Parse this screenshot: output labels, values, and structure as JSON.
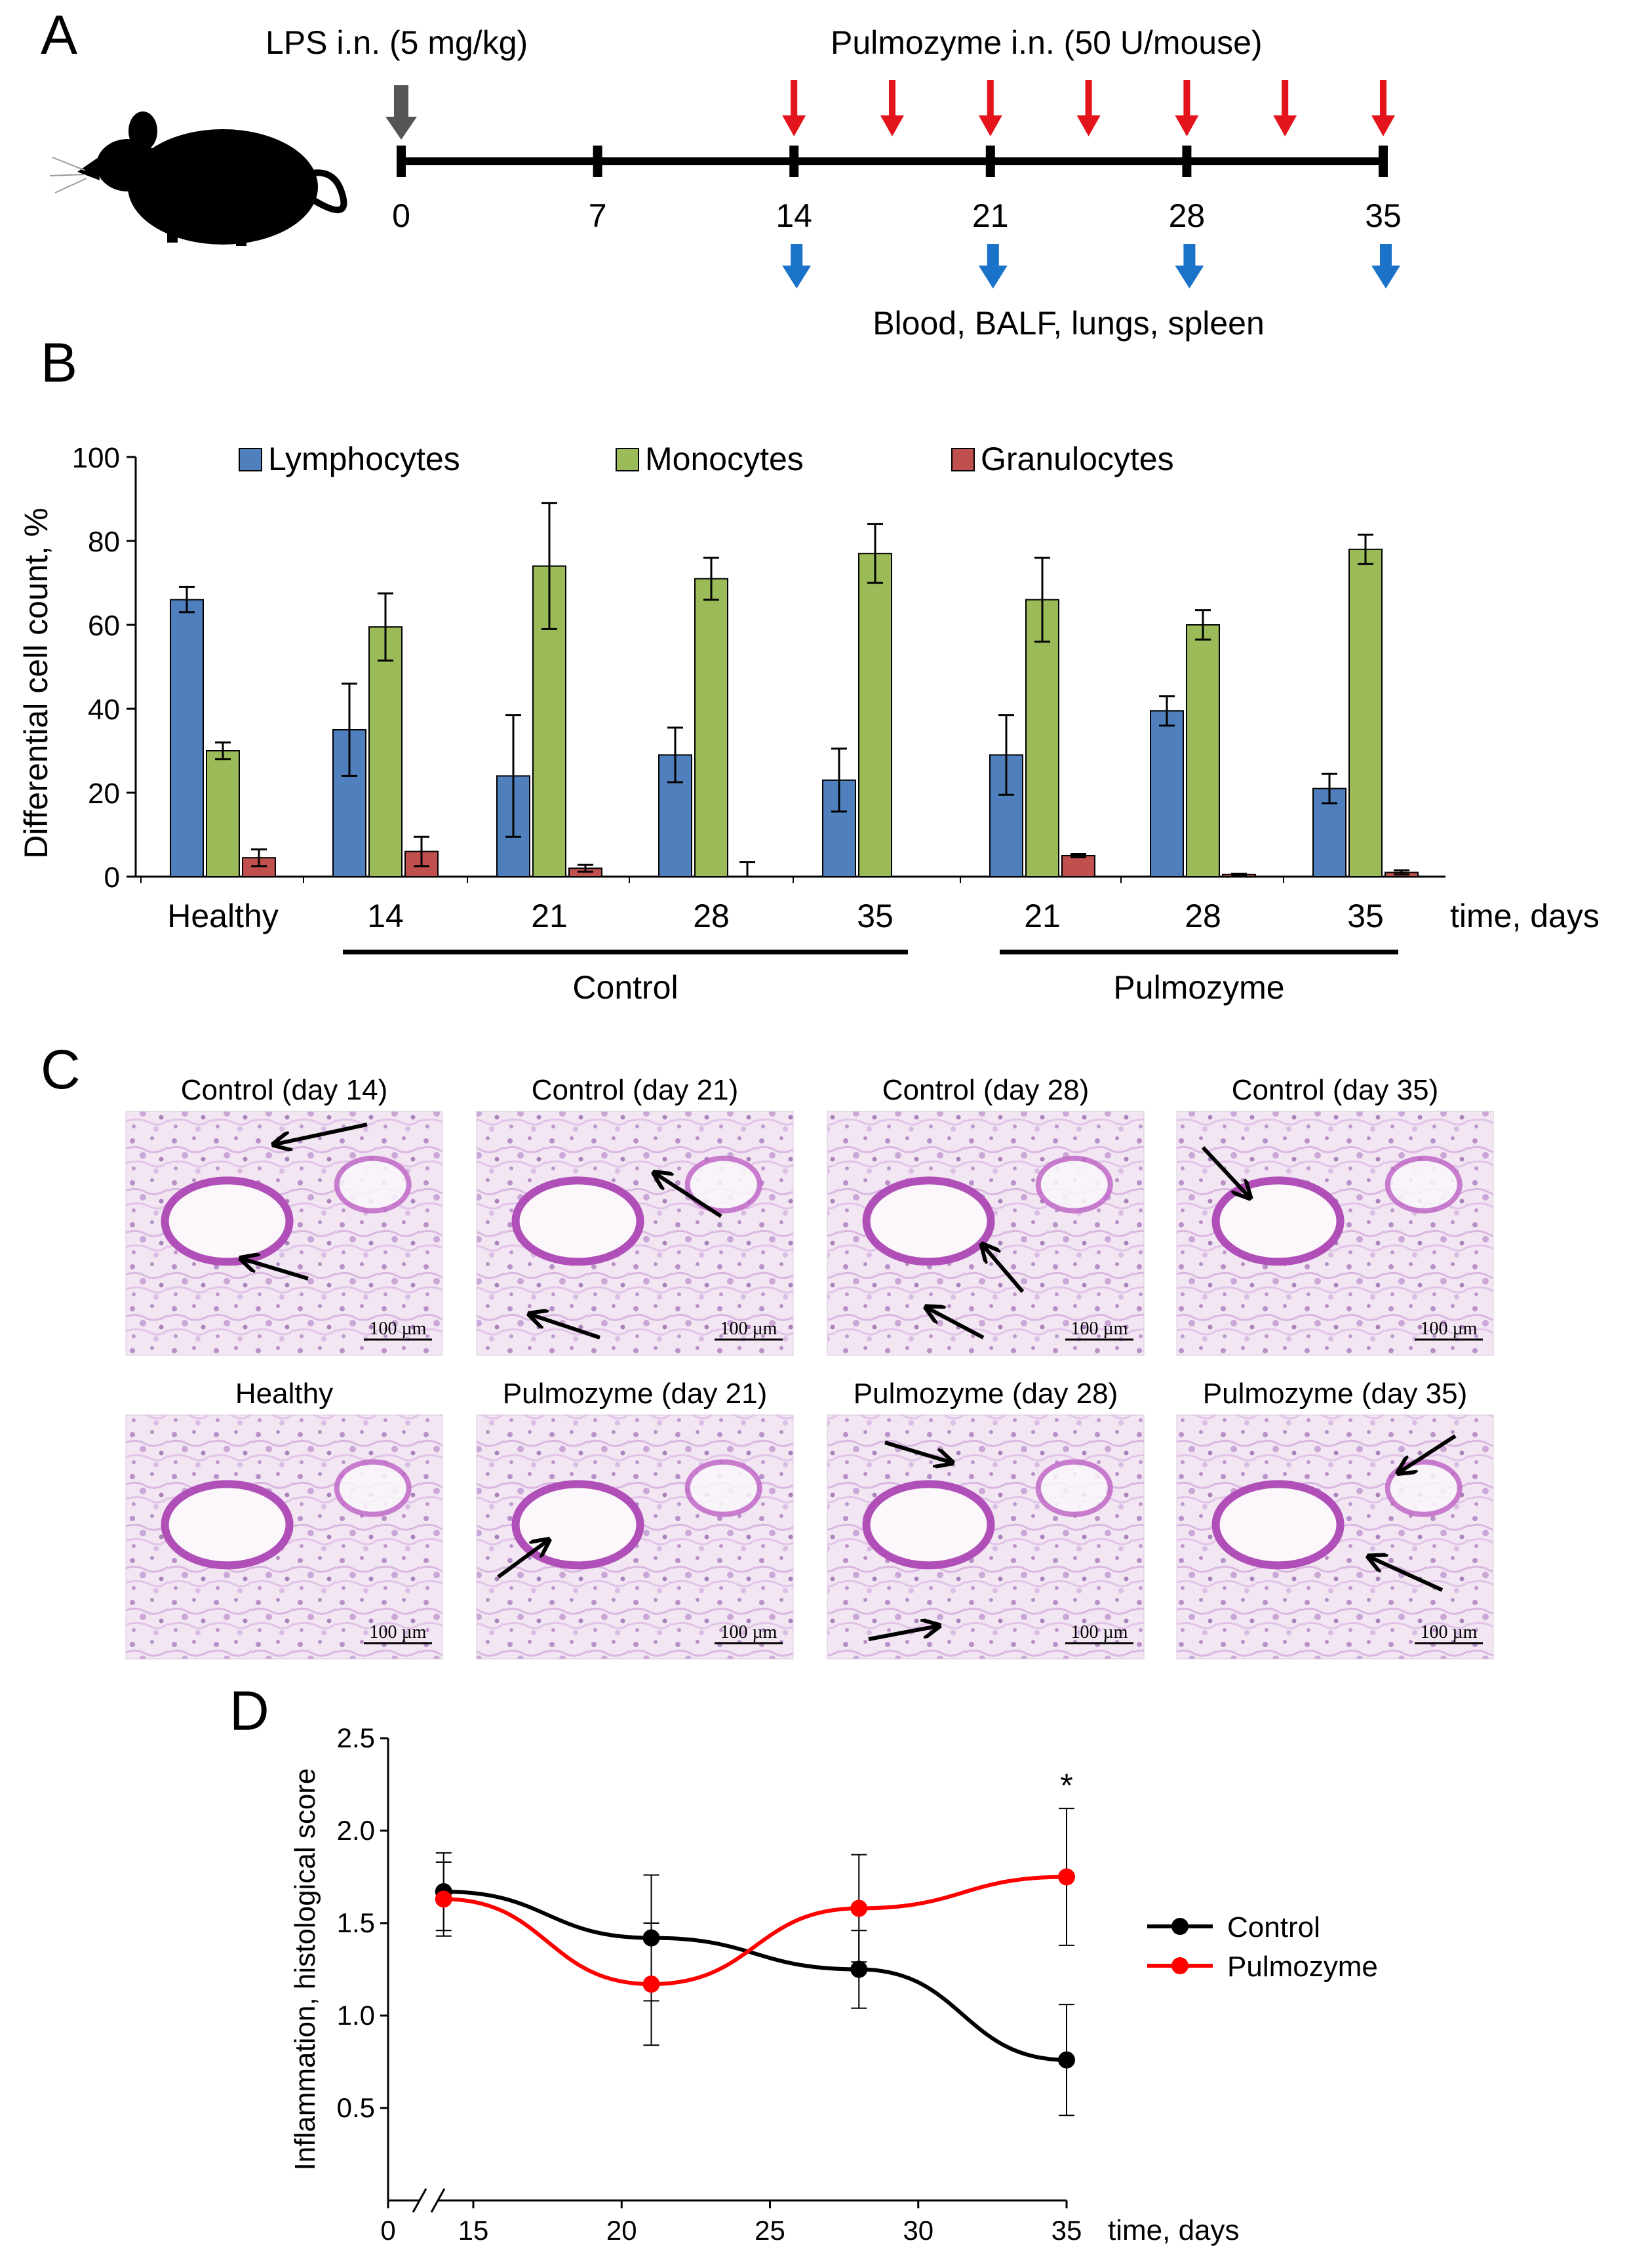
{
  "panels": {
    "a": "A",
    "b": "B",
    "c": "C",
    "d": "D"
  },
  "timeline": {
    "lps_label": "LPS i.n. (5 mg/kg)",
    "pulmozyme_label": "Pulmozyme i.n. (50 U/mouse)",
    "ticks": [
      "0",
      "7",
      "14",
      "21",
      "28",
      "35"
    ],
    "sampling_label": "Blood, BALF, lungs, spleen",
    "colors": {
      "lps_arrow": "#555555",
      "treatment_arrow": "#e3141b",
      "sampling_arrow": "#1a73c8"
    }
  },
  "histology": {
    "scale_bar": "100 µm",
    "images": [
      {
        "title": "Control (day 14)",
        "arrows": 2
      },
      {
        "title": "Control (day 21)",
        "arrows": 2
      },
      {
        "title": "Control (day 28)",
        "arrows": 2
      },
      {
        "title": "Control (day 35)",
        "arrows": 1
      },
      {
        "title": "Healthy",
        "arrows": 0
      },
      {
        "title": "Pulmozyme (day 21)",
        "arrows": 1
      },
      {
        "title": "Pulmozyme (day 28)",
        "arrows": 2
      },
      {
        "title": "Pulmozyme (day 35)",
        "arrows": 2
      }
    ]
  },
  "chart_data": [
    {
      "type": "bar",
      "ylabel": "Differential cell count, %",
      "xlabel": "time, days",
      "ylim": [
        0,
        100
      ],
      "yticks": [
        "0",
        "20",
        "40",
        "60",
        "80",
        "100"
      ],
      "categories": [
        "Healthy",
        "14",
        "21",
        "28",
        "35",
        "21",
        "28",
        "35"
      ],
      "groups": [
        {
          "label": "Control",
          "from": 1,
          "to": 4
        },
        {
          "label": "Pulmozyme",
          "from": 5,
          "to": 7
        }
      ],
      "legend": "top",
      "series": [
        {
          "name": "Lymphocytes",
          "color": "#4f80bd",
          "values": [
            66,
            35,
            24,
            29,
            23,
            29,
            39.5,
            21
          ],
          "errors": [
            3,
            11,
            14.5,
            6.5,
            7.5,
            9.5,
            3.5,
            3.5
          ]
        },
        {
          "name": "Monocytes",
          "color": "#9bbb59",
          "values": [
            30,
            59.5,
            74,
            71,
            77,
            66,
            60,
            78
          ],
          "errors": [
            2,
            8,
            15,
            5,
            7,
            10,
            3.5,
            3.5
          ]
        },
        {
          "name": "Granulocytes",
          "color": "#c0504d",
          "values": [
            4.5,
            6,
            2,
            0,
            0,
            5,
            0.5,
            1
          ],
          "errors": [
            2,
            3.5,
            0.8,
            3.5,
            0,
            0.4,
            0.2,
            0.5
          ]
        }
      ]
    },
    {
      "type": "line",
      "ylabel": "Inflammation, histological score",
      "xlabel": "time, days",
      "ylim": [
        0,
        2.5
      ],
      "xlim": [
        15,
        35
      ],
      "yticks": [
        "0.5",
        "1.0",
        "1.5",
        "2.0",
        "2.5"
      ],
      "xticks": [
        "0",
        "15",
        "20",
        "25",
        "30",
        "35"
      ],
      "axis_break": true,
      "legend": "right",
      "annotation": {
        "text": "*",
        "x": 35
      },
      "series": [
        {
          "name": "Control",
          "color": "#000000",
          "x": [
            14,
            21,
            28,
            35
          ],
          "values": [
            1.67,
            1.42,
            1.25,
            0.76
          ],
          "errors": [
            0.21,
            0.34,
            0.21,
            0.3
          ]
        },
        {
          "name": "Pulmozyme",
          "color": "#ff0000",
          "x": [
            14,
            21,
            28,
            35
          ],
          "values": [
            1.63,
            1.17,
            1.58,
            1.75
          ],
          "errors": [
            0.2,
            0.33,
            0.29,
            0.37
          ]
        }
      ]
    }
  ]
}
